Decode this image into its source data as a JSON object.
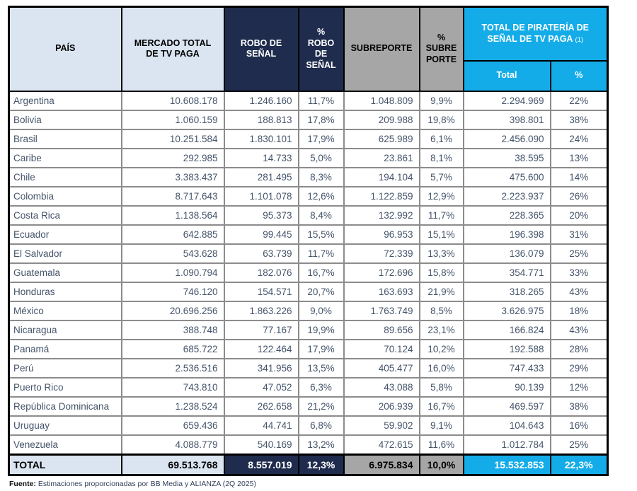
{
  "colors": {
    "header_light_blue": "#DBE5F1",
    "header_navy": "#1F2C4D",
    "header_gray": "#A6A6A6",
    "header_cyan": "#14ACE8",
    "body_text": "#44546A",
    "grid_line": "#8C8C8C",
    "outer_border": "#000000"
  },
  "header": {
    "pais": "PAÍS",
    "mercado": "MERCADO TOTAL\nDE TV PAGA",
    "robo": "ROBO DE\nSEÑAL",
    "robo_pct": "%\nROBO\nDE\nSEÑAL",
    "subreporte": "SUBREPORTE",
    "subreporte_pct": "%\nSUBRE\nPORTE",
    "piracy_title": "TOTAL DE PIRATERÍA DE\nSEÑAL DE TV PAGA",
    "piracy_note": "(1)",
    "piracy_total": "Total",
    "piracy_pct": "%"
  },
  "chart_data": {
    "type": "table",
    "columns": [
      "PAÍS",
      "MERCADO TOTAL DE TV PAGA",
      "ROBO DE SEÑAL",
      "% ROBO DE SEÑAL",
      "SUBREPORTE",
      "% SUBREPORTE",
      "TOTAL DE PIRATERÍA DE SEÑAL DE TV PAGA (1) - Total",
      "TOTAL DE PIRATERÍA DE SEÑAL DE TV PAGA (1) - %"
    ],
    "rows": [
      [
        "Argentina",
        "10.608.178",
        "1.246.160",
        "11,7%",
        "1.048.809",
        "9,9%",
        "2.294.969",
        "22%"
      ],
      [
        "Bolivia",
        "1.060.159",
        "188.813",
        "17,8%",
        "209.988",
        "19,8%",
        "398.801",
        "38%"
      ],
      [
        "Brasil",
        "10.251.584",
        "1.830.101",
        "17,9%",
        "625.989",
        "6,1%",
        "2.456.090",
        "24%"
      ],
      [
        "Caribe",
        "292.985",
        "14.733",
        "5,0%",
        "23.861",
        "8,1%",
        "38.595",
        "13%"
      ],
      [
        "Chile",
        "3.383.437",
        "281.495",
        "8,3%",
        "194.104",
        "5,7%",
        "475.600",
        "14%"
      ],
      [
        "Colombia",
        "8.717.643",
        "1.101.078",
        "12,6%",
        "1.122.859",
        "12,9%",
        "2.223.937",
        "26%"
      ],
      [
        "Costa Rica",
        "1.138.564",
        "95.373",
        "8,4%",
        "132.992",
        "11,7%",
        "228.365",
        "20%"
      ],
      [
        "Ecuador",
        "642.885",
        "99.445",
        "15,5%",
        "96.953",
        "15,1%",
        "196.398",
        "31%"
      ],
      [
        "El Salvador",
        "543.628",
        "63.739",
        "11,7%",
        "72.339",
        "13,3%",
        "136.079",
        "25%"
      ],
      [
        "Guatemala",
        "1.090.794",
        "182.076",
        "16,7%",
        "172.696",
        "15,8%",
        "354.771",
        "33%"
      ],
      [
        "Honduras",
        "746.120",
        "154.571",
        "20,7%",
        "163.693",
        "21,9%",
        "318.265",
        "43%"
      ],
      [
        "México",
        "20.696.256",
        "1.863.226",
        "9,0%",
        "1.763.749",
        "8,5%",
        "3.626.975",
        "18%"
      ],
      [
        "Nicaragua",
        "388.748",
        "77.167",
        "19,9%",
        "89.656",
        "23,1%",
        "166.824",
        "43%"
      ],
      [
        "Panamá",
        "685.722",
        "122.464",
        "17,9%",
        "70.124",
        "10,2%",
        "192.588",
        "28%"
      ],
      [
        "Perú",
        "2.536.516",
        "341.956",
        "13,5%",
        "405.477",
        "16,0%",
        "747.433",
        "29%"
      ],
      [
        "Puerto Rico",
        "743.810",
        "47.052",
        "6,3%",
        "43.088",
        "5,8%",
        "90.139",
        "12%"
      ],
      [
        "República Dominicana",
        "1.238.524",
        "262.658",
        "21,2%",
        "206.939",
        "16,7%",
        "469.597",
        "38%"
      ],
      [
        "Uruguay",
        "659.436",
        "44.741",
        "6,8%",
        "59.902",
        "9,1%",
        "104.643",
        "16%"
      ],
      [
        "Venezuela",
        "4.088.779",
        "540.169",
        "13,2%",
        "472.615",
        "11,6%",
        "1.012.784",
        "25%"
      ]
    ],
    "total_row": [
      "TOTAL",
      "69.513.768",
      "8.557.019",
      "12,3%",
      "6.975.834",
      "10,0%",
      "15.532.853",
      "22,3%"
    ]
  },
  "footer": {
    "label": "Fuente:",
    "text": " Estimaciones proporcionadas por BB Media y ALIANZA (2Q 2025)"
  }
}
